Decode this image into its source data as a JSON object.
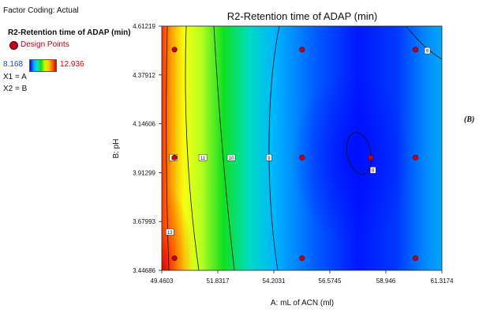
{
  "header": {
    "factor_coding": "Factor Coding: Actual",
    "response": "R2-Retention time of ADAP (min)",
    "legend_label": "Design Points",
    "range_low": "8.168",
    "range_high": "12.936",
    "x1": "X1 = A",
    "x2": "X2 = B"
  },
  "side_label": "(B)",
  "colors": {
    "low": "#0000ff",
    "high": "#e00000",
    "range_low_text": "#1e3cff",
    "range_high_text": "#e00000",
    "point": "#c0001a"
  },
  "chart_data": {
    "type": "contour",
    "title": "R2-Retention time of ADAP (min)",
    "xlabel": "A: mL of ACN (ml)",
    "ylabel": "B: pH",
    "xlim": [
      49.4603,
      61.3174
    ],
    "ylim": [
      3.44686,
      4.61219
    ],
    "x_ticks": [
      "49.4603",
      "51.8317",
      "54.2031",
      "56.5745",
      "58.946",
      "61.3174"
    ],
    "y_ticks": [
      "3.44686",
      "3.67993",
      "3.91299",
      "4.14606",
      "4.37912",
      "4.61219"
    ],
    "response_range": [
      8.168,
      12.936
    ],
    "design_points": [
      {
        "x": 50.0,
        "y": 4.5
      },
      {
        "x": 55.4,
        "y": 4.5
      },
      {
        "x": 60.2,
        "y": 4.5
      },
      {
        "x": 50.0,
        "y": 3.985
      },
      {
        "x": 55.4,
        "y": 3.985
      },
      {
        "x": 58.3,
        "y": 3.985
      },
      {
        "x": 60.2,
        "y": 3.985
      },
      {
        "x": 50.0,
        "y": 3.505
      },
      {
        "x": 55.4,
        "y": 3.505
      },
      {
        "x": 60.2,
        "y": 3.505
      }
    ],
    "contour_labels": [
      {
        "text": "13",
        "x": 49.95,
        "y": 3.985
      },
      {
        "text": "11",
        "x": 51.2,
        "y": 3.985
      },
      {
        "text": "10",
        "x": 52.4,
        "y": 3.985
      },
      {
        "text": "9",
        "x": 54.0,
        "y": 3.985
      },
      {
        "text": "8",
        "x": 58.4,
        "y": 3.925
      },
      {
        "text": "9",
        "x": 60.7,
        "y": 4.495
      },
      {
        "text": "13",
        "x": 49.8,
        "y": 3.63
      }
    ]
  }
}
